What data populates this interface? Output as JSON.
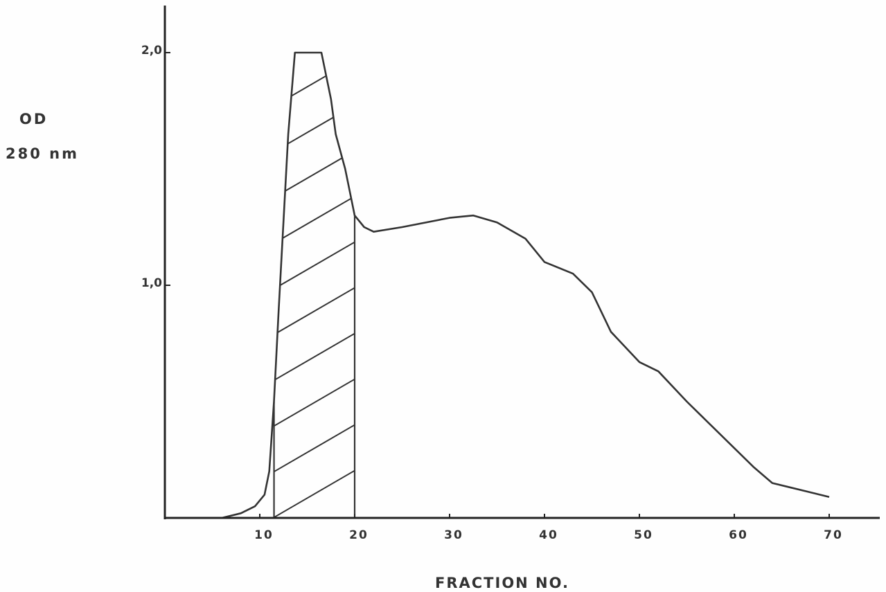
{
  "chart_data": {
    "type": "line",
    "ylabel_line1": "OD",
    "ylabel_line2": "280 nm",
    "xlabel": "FRACTION NO.",
    "xlim": [
      0,
      75
    ],
    "ylim": [
      0,
      2.2
    ],
    "xticks": [
      10,
      20,
      30,
      40,
      50,
      60,
      70
    ],
    "xtick_labels": [
      "10",
      "20",
      "30",
      "40",
      "50",
      "60",
      "70"
    ],
    "yticks": [
      1.0,
      2.0
    ],
    "ytick_labels": [
      "1,0",
      "2,0"
    ],
    "grid": false,
    "shaded_region": {
      "x_start": 11.5,
      "x_end": 20,
      "pattern": "diagonal hatching"
    },
    "series": [
      {
        "x": [
          6,
          8,
          9.5,
          10.5,
          11,
          11.5,
          12,
          13,
          13.7,
          16.5,
          17,
          17.5,
          18,
          19,
          20,
          21,
          22,
          25,
          30,
          32.5,
          35,
          38,
          40,
          43,
          45,
          47,
          50,
          52,
          55,
          58,
          60,
          62,
          64,
          66,
          68,
          70
        ],
        "y": [
          0.0,
          0.02,
          0.05,
          0.1,
          0.2,
          0.5,
          0.9,
          1.65,
          2.0,
          2.0,
          1.9,
          1.8,
          1.65,
          1.5,
          1.3,
          1.25,
          1.23,
          1.25,
          1.29,
          1.3,
          1.27,
          1.2,
          1.1,
          1.05,
          0.97,
          0.8,
          0.67,
          0.63,
          0.5,
          0.38,
          0.3,
          0.22,
          0.15,
          0.13,
          0.11,
          0.09
        ]
      }
    ]
  }
}
